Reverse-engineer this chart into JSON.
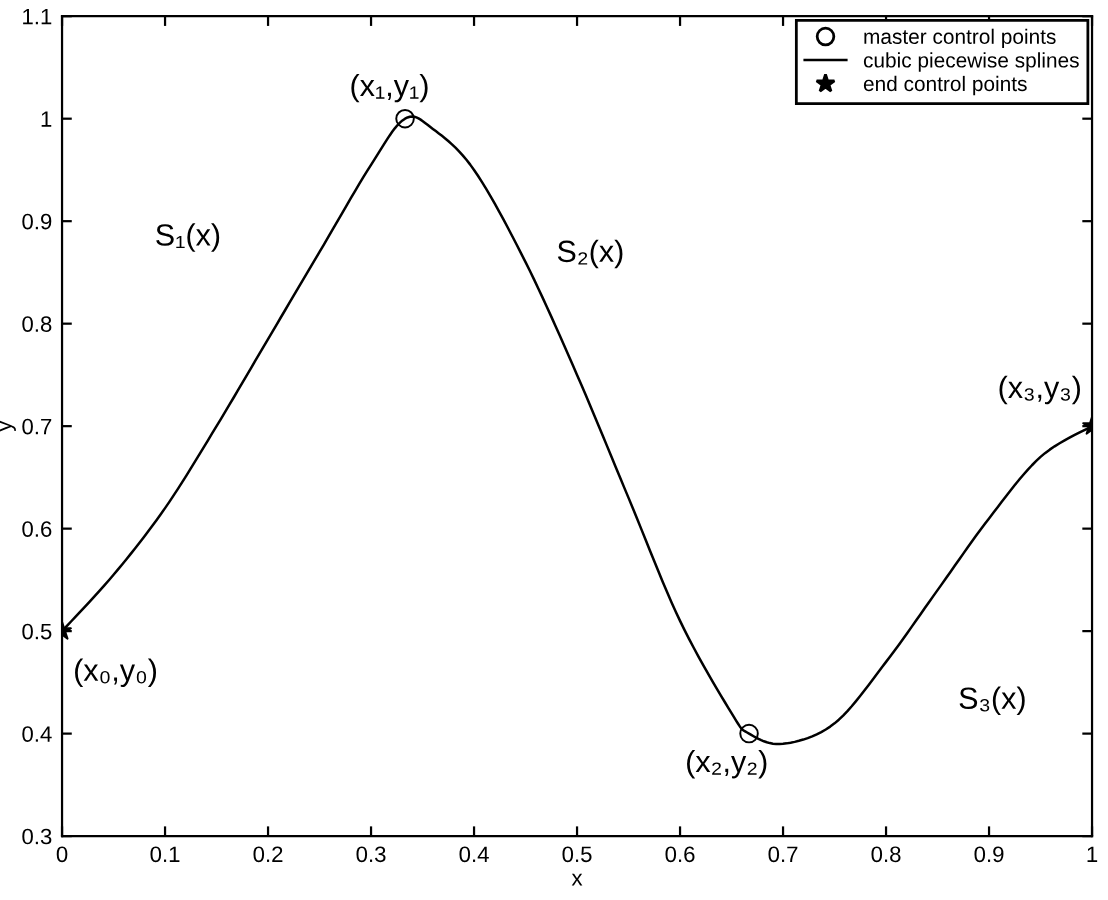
{
  "chart_data": {
    "type": "line",
    "xlabel": "x",
    "ylabel": "y",
    "xlim": [
      0,
      1
    ],
    "ylim": [
      0.3,
      1.1
    ],
    "xticks": [
      0,
      0.1,
      0.2,
      0.3,
      0.4,
      0.5,
      0.6,
      0.7,
      0.8,
      0.9,
      1
    ],
    "yticks": [
      0.3,
      0.4,
      0.5,
      0.6,
      0.7,
      0.8,
      0.9,
      1,
      1.1
    ],
    "grid": false,
    "legend": "top right",
    "series": [
      {
        "name": "master control points",
        "type": "scatter",
        "marker": "circle",
        "color": "#000000",
        "x": [
          0.333,
          0.667
        ],
        "values": [
          1.0,
          0.4
        ]
      },
      {
        "name": "cubic piecewise splines",
        "marker": "none",
        "line_style": "solid",
        "color": "#000000",
        "x": [
          0,
          0.05,
          0.1,
          0.15,
          0.2,
          0.25,
          0.3,
          0.333,
          0.36,
          0.4,
          0.45,
          0.5,
          0.55,
          0.6,
          0.65,
          0.667,
          0.7,
          0.75,
          0.8,
          0.85,
          0.9,
          0.95,
          1
        ],
        "values": [
          0.5,
          0.555,
          0.62,
          0.7,
          0.785,
          0.87,
          0.955,
          1.0,
          0.99,
          0.95,
          0.86,
          0.75,
          0.63,
          0.51,
          0.42,
          0.4,
          0.39,
          0.41,
          0.47,
          0.54,
          0.61,
          0.67,
          0.7
        ]
      },
      {
        "name": "end control points",
        "type": "scatter",
        "marker": "star",
        "color": "#000000",
        "x": [
          0,
          1
        ],
        "values": [
          0.5,
          0.7
        ]
      }
    ],
    "annotations": [
      {
        "text": "(x₀,y₀)",
        "x": 0,
        "y": 0.5
      },
      {
        "text": "(x₁,y₁)",
        "x": 0.333,
        "y": 1.0
      },
      {
        "text": "(x₂,y₂)",
        "x": 0.667,
        "y": 0.4
      },
      {
        "text": "(x₃,y₃)",
        "x": 1,
        "y": 0.7
      },
      "S₁(x)",
      "S₂(x)",
      "S₃(x)"
    ]
  }
}
